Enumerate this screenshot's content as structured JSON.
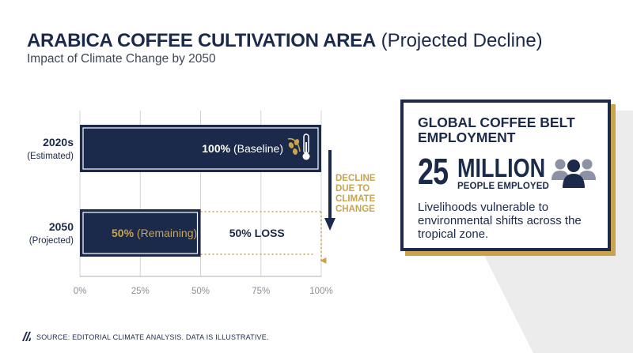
{
  "header": {
    "title_bold": "ARABICA COFFEE CULTIVATION AREA",
    "title_light": "(Projected Decline)",
    "subtitle": "Impact of Climate Change by 2050"
  },
  "chart_data": {
    "type": "bar",
    "orientation": "horizontal",
    "categories": [
      {
        "label": "2020s",
        "sublabel": "(Estimated)"
      },
      {
        "label": "2050",
        "sublabel": "(Projected)"
      }
    ],
    "values": [
      100,
      50
    ],
    "unit": "%",
    "bar_labels": [
      {
        "value_text": "100%",
        "suffix": "(Baseline)"
      },
      {
        "value_text": "50%",
        "suffix": "(Remaining)"
      }
    ],
    "loss_label": "50% LOSS",
    "annotation": [
      "DECLINE",
      "DUE TO",
      "CLIMATE",
      "CHANGE"
    ],
    "xlim": [
      0,
      100
    ],
    "xticks": [
      "0%",
      "25%",
      "50%",
      "75%",
      "100%"
    ],
    "grid": true,
    "colors": {
      "bar": "#1b2a4a",
      "accent": "#c9a34e",
      "grid": "#cfd4dc"
    }
  },
  "card": {
    "title": "GLOBAL COFFEE BELT EMPLOYMENT",
    "number": "25",
    "unit": "MILLION",
    "caption": "PEOPLE EMPLOYED",
    "description": "Livelihoods vulnerable to environmental shifts across the tropical zone.",
    "icon": "people-group-icon"
  },
  "footer": {
    "source": "SOURCE: EDITORIAL CLIMATE ANALYSIS. DATA IS ILLUSTRATIVE.",
    "icon": "diagonal-stripes-icon"
  }
}
